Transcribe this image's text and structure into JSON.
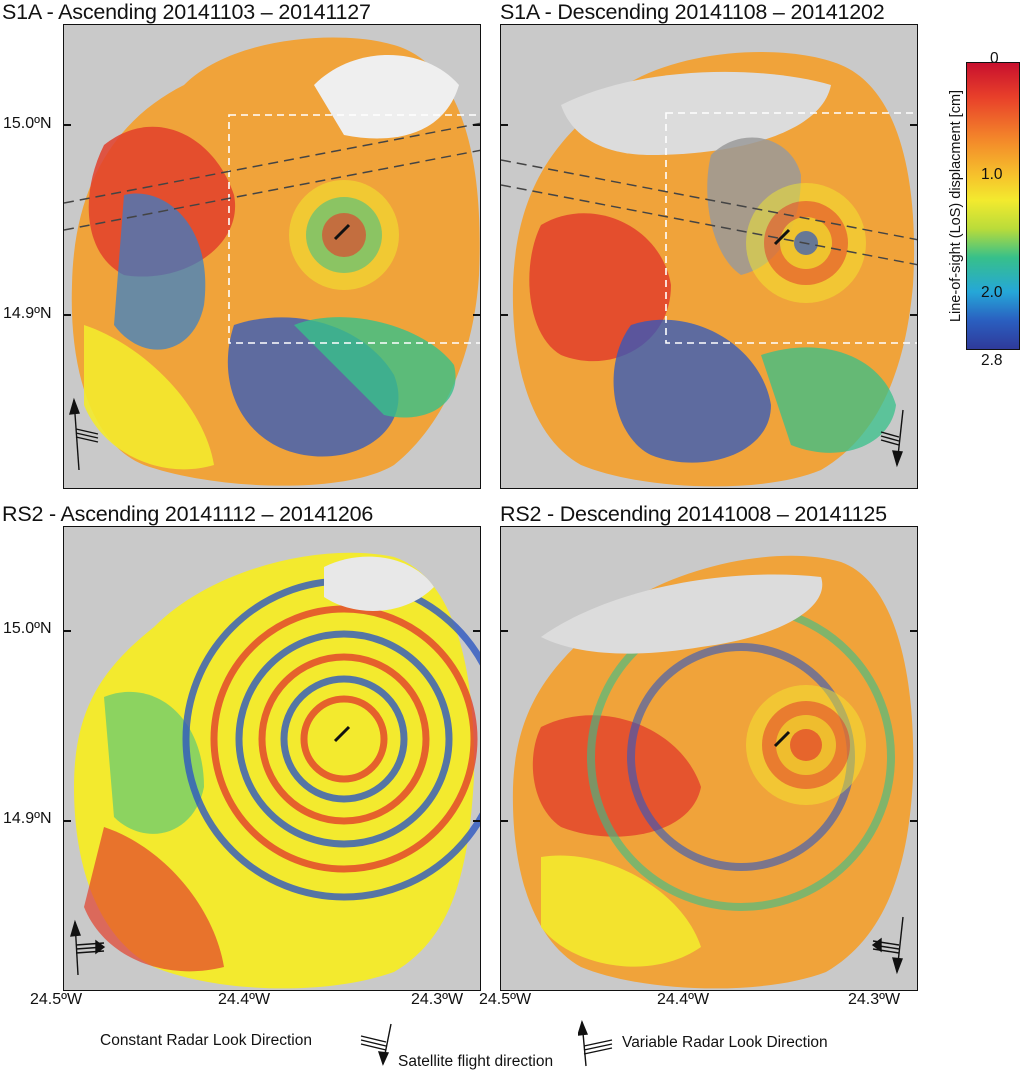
{
  "panels": [
    {
      "title": "S1A - Ascending 20141103 – 20141127",
      "mode": "ascending",
      "look_indicator": "constant"
    },
    {
      "title": "S1A - Descending 20141108 – 20141202",
      "mode": "descending",
      "look_indicator": "constant"
    },
    {
      "title": "RS2 - Ascending 20141112 – 20141206",
      "mode": "ascending",
      "look_indicator": "variable"
    },
    {
      "title": "RS2 - Descending 20141008 – 20141125",
      "mode": "descending",
      "look_indicator": "variable"
    }
  ],
  "axes": {
    "lat_labels": [
      "15.0ºN",
      "14.9ºN"
    ],
    "lon_labels": [
      "24.5ºW",
      "24.4ºW",
      "24.3ºW"
    ]
  },
  "colorbar": {
    "title": "Line-of-sight (LoS) displacment [cm]",
    "ticks": [
      "0",
      "1.0",
      "2.0",
      "2.8"
    ],
    "range": [
      0,
      2.8
    ],
    "colors": [
      "#c8102e",
      "#f3842a",
      "#f3ea2e",
      "#37c08a",
      "#25a7d8",
      "#2f3a9a"
    ]
  },
  "legend": {
    "constant_label": "Constant Radar Look Direction",
    "satellite_label": "Satellite flight direction",
    "variable_label": "Variable Radar Look Direction"
  }
}
